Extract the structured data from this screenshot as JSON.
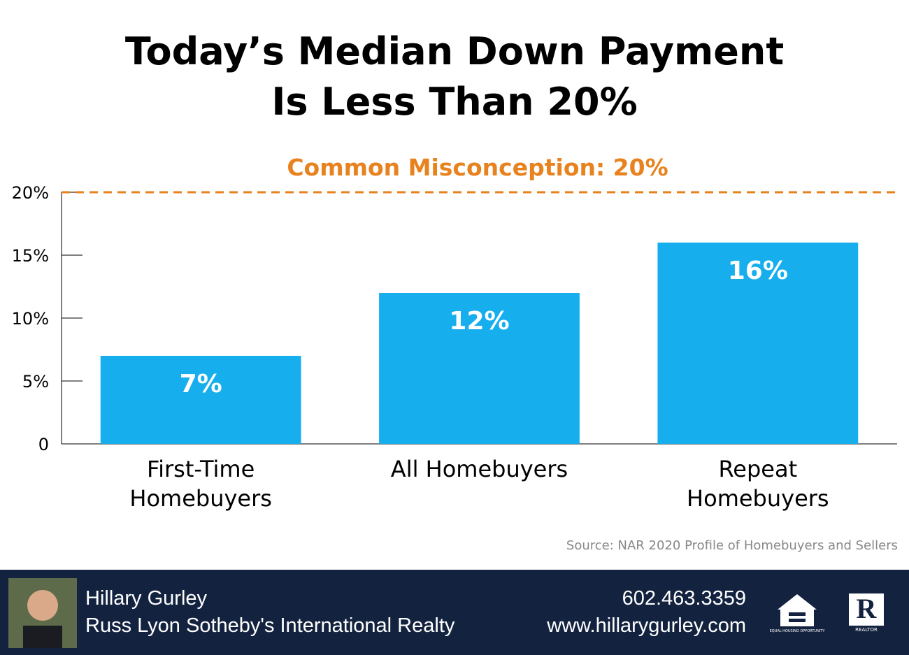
{
  "chart_data": {
    "type": "bar",
    "title": "Today’s Median Down Payment Is Less Than 20%",
    "categories": [
      "First-Time Homebuyers",
      "All Homebuyers",
      "Repeat Homebuyers"
    ],
    "values": [
      7,
      12,
      16
    ],
    "value_labels": [
      "7%",
      "12%",
      "16%"
    ],
    "color": "#17aeee",
    "ylim": [
      0,
      20
    ],
    "yticks": [
      0,
      {
        "value": 5,
        "label": "5%"
      },
      {
        "value": 10,
        "label": "10%"
      },
      {
        "value": 15,
        "label": "15%"
      },
      {
        "value": 20,
        "label": "20%"
      }
    ],
    "reference_line": {
      "value": 20,
      "label": "Common Misconception: 20%",
      "color": "#e8821e"
    },
    "source": "Source: NAR 2020 Profile of Homebuyers and Sellers"
  },
  "footer": {
    "name": "Hillary Gurley",
    "company": "Russ Lyon Sotheby's International Realty",
    "phone": "602.463.3359",
    "website": "www.hillarygurley.com",
    "equal_housing": "EQUAL HOUSING OPPORTUNITY",
    "realtor": "REALTOR"
  }
}
